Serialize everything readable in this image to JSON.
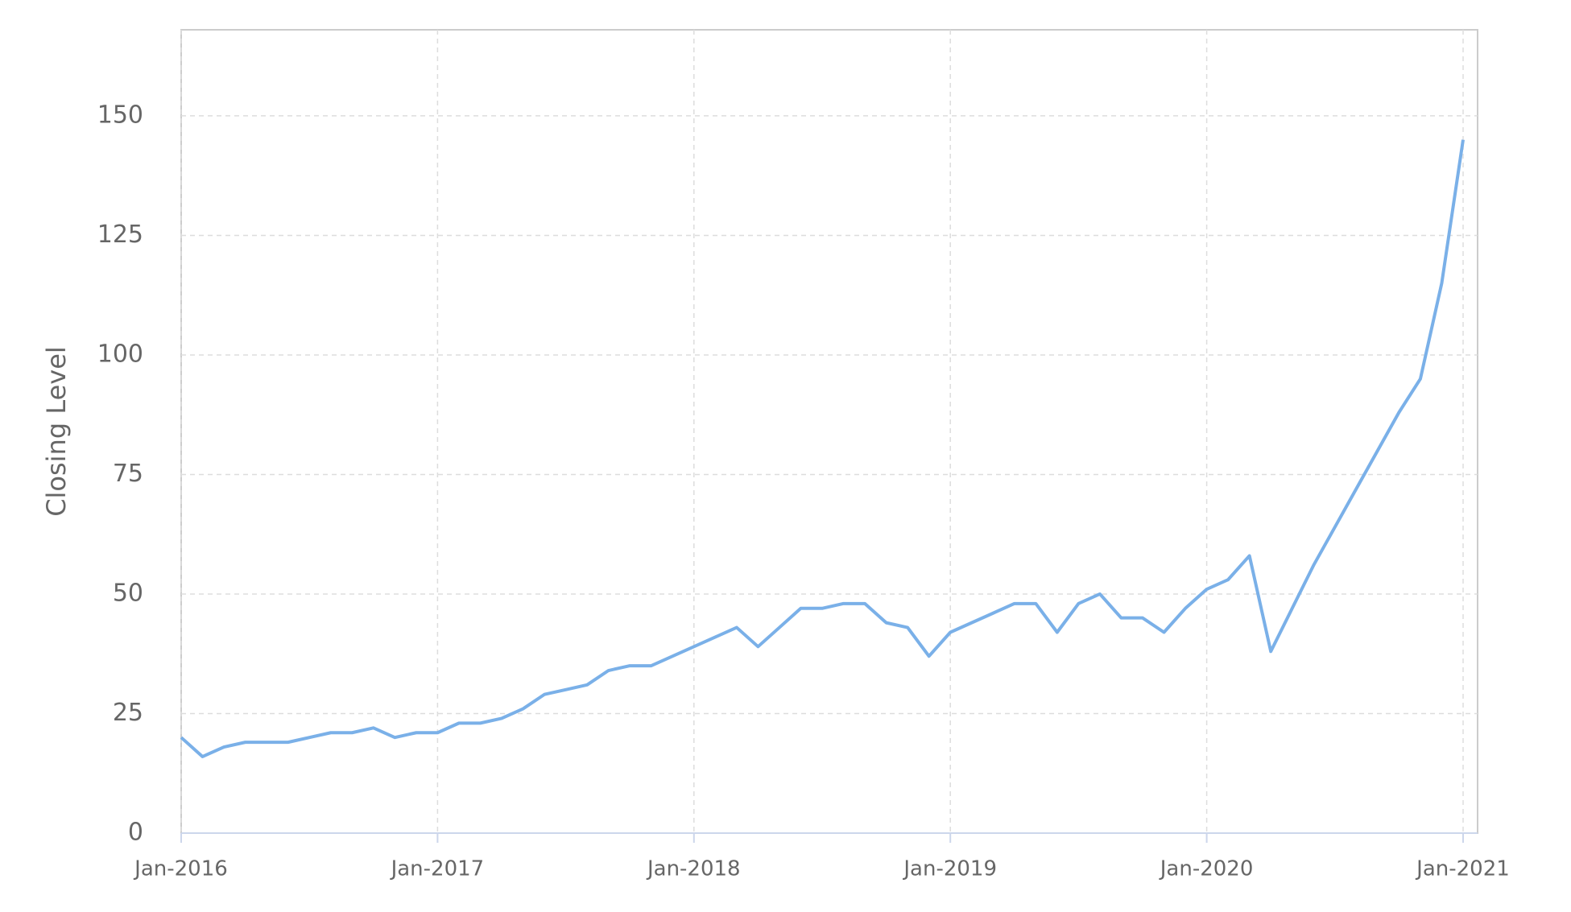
{
  "chart_data": {
    "type": "line",
    "y_label": "Closing Level",
    "x": [
      "2016-01",
      "2016-02",
      "2016-03",
      "2016-04",
      "2016-05",
      "2016-06",
      "2016-07",
      "2016-08",
      "2016-09",
      "2016-10",
      "2016-11",
      "2016-12",
      "2017-01",
      "2017-02",
      "2017-03",
      "2017-04",
      "2017-05",
      "2017-06",
      "2017-07",
      "2017-08",
      "2017-09",
      "2017-10",
      "2017-11",
      "2017-12",
      "2018-01",
      "2018-02",
      "2018-03",
      "2018-04",
      "2018-05",
      "2018-06",
      "2018-07",
      "2018-08",
      "2018-09",
      "2018-10",
      "2018-11",
      "2018-12",
      "2019-01",
      "2019-02",
      "2019-03",
      "2019-04",
      "2019-05",
      "2019-06",
      "2019-07",
      "2019-08",
      "2019-09",
      "2019-10",
      "2019-11",
      "2019-12",
      "2020-01",
      "2020-02",
      "2020-03",
      "2020-04",
      "2020-05",
      "2020-06",
      "2020-07",
      "2020-08",
      "2020-09",
      "2020-10",
      "2020-11",
      "2020-12",
      "2021-01"
    ],
    "series": [
      {
        "name": "Closing Level",
        "color": "#7ab0e8",
        "values": [
          20,
          16,
          18,
          19,
          19,
          19,
          20,
          21,
          21,
          22,
          20,
          21,
          21,
          23,
          23,
          24,
          26,
          29,
          30,
          31,
          34,
          35,
          35,
          37,
          39,
          41,
          43,
          39,
          43,
          47,
          47,
          48,
          48,
          44,
          43,
          37,
          42,
          44,
          46,
          48,
          48,
          42,
          48,
          50,
          45,
          45,
          42,
          47,
          51,
          53,
          58,
          38,
          47,
          56,
          64,
          72,
          80,
          88,
          95,
          115,
          145
        ]
      }
    ],
    "xlim": [
      "2016-01",
      "2021-01"
    ],
    "xticks": [
      {
        "value": "2016-01",
        "label": "Jan-2016"
      },
      {
        "value": "2017-01",
        "label": "Jan-2017"
      },
      {
        "value": "2018-01",
        "label": "Jan-2018"
      },
      {
        "value": "2019-01",
        "label": "Jan-2019"
      },
      {
        "value": "2020-01",
        "label": "Jan-2020"
      },
      {
        "value": "2021-01",
        "label": "Jan-2021"
      }
    ],
    "ylim": [
      0,
      168
    ],
    "yticks": [
      0,
      25,
      50,
      75,
      100,
      125,
      150
    ],
    "grid": true
  }
}
